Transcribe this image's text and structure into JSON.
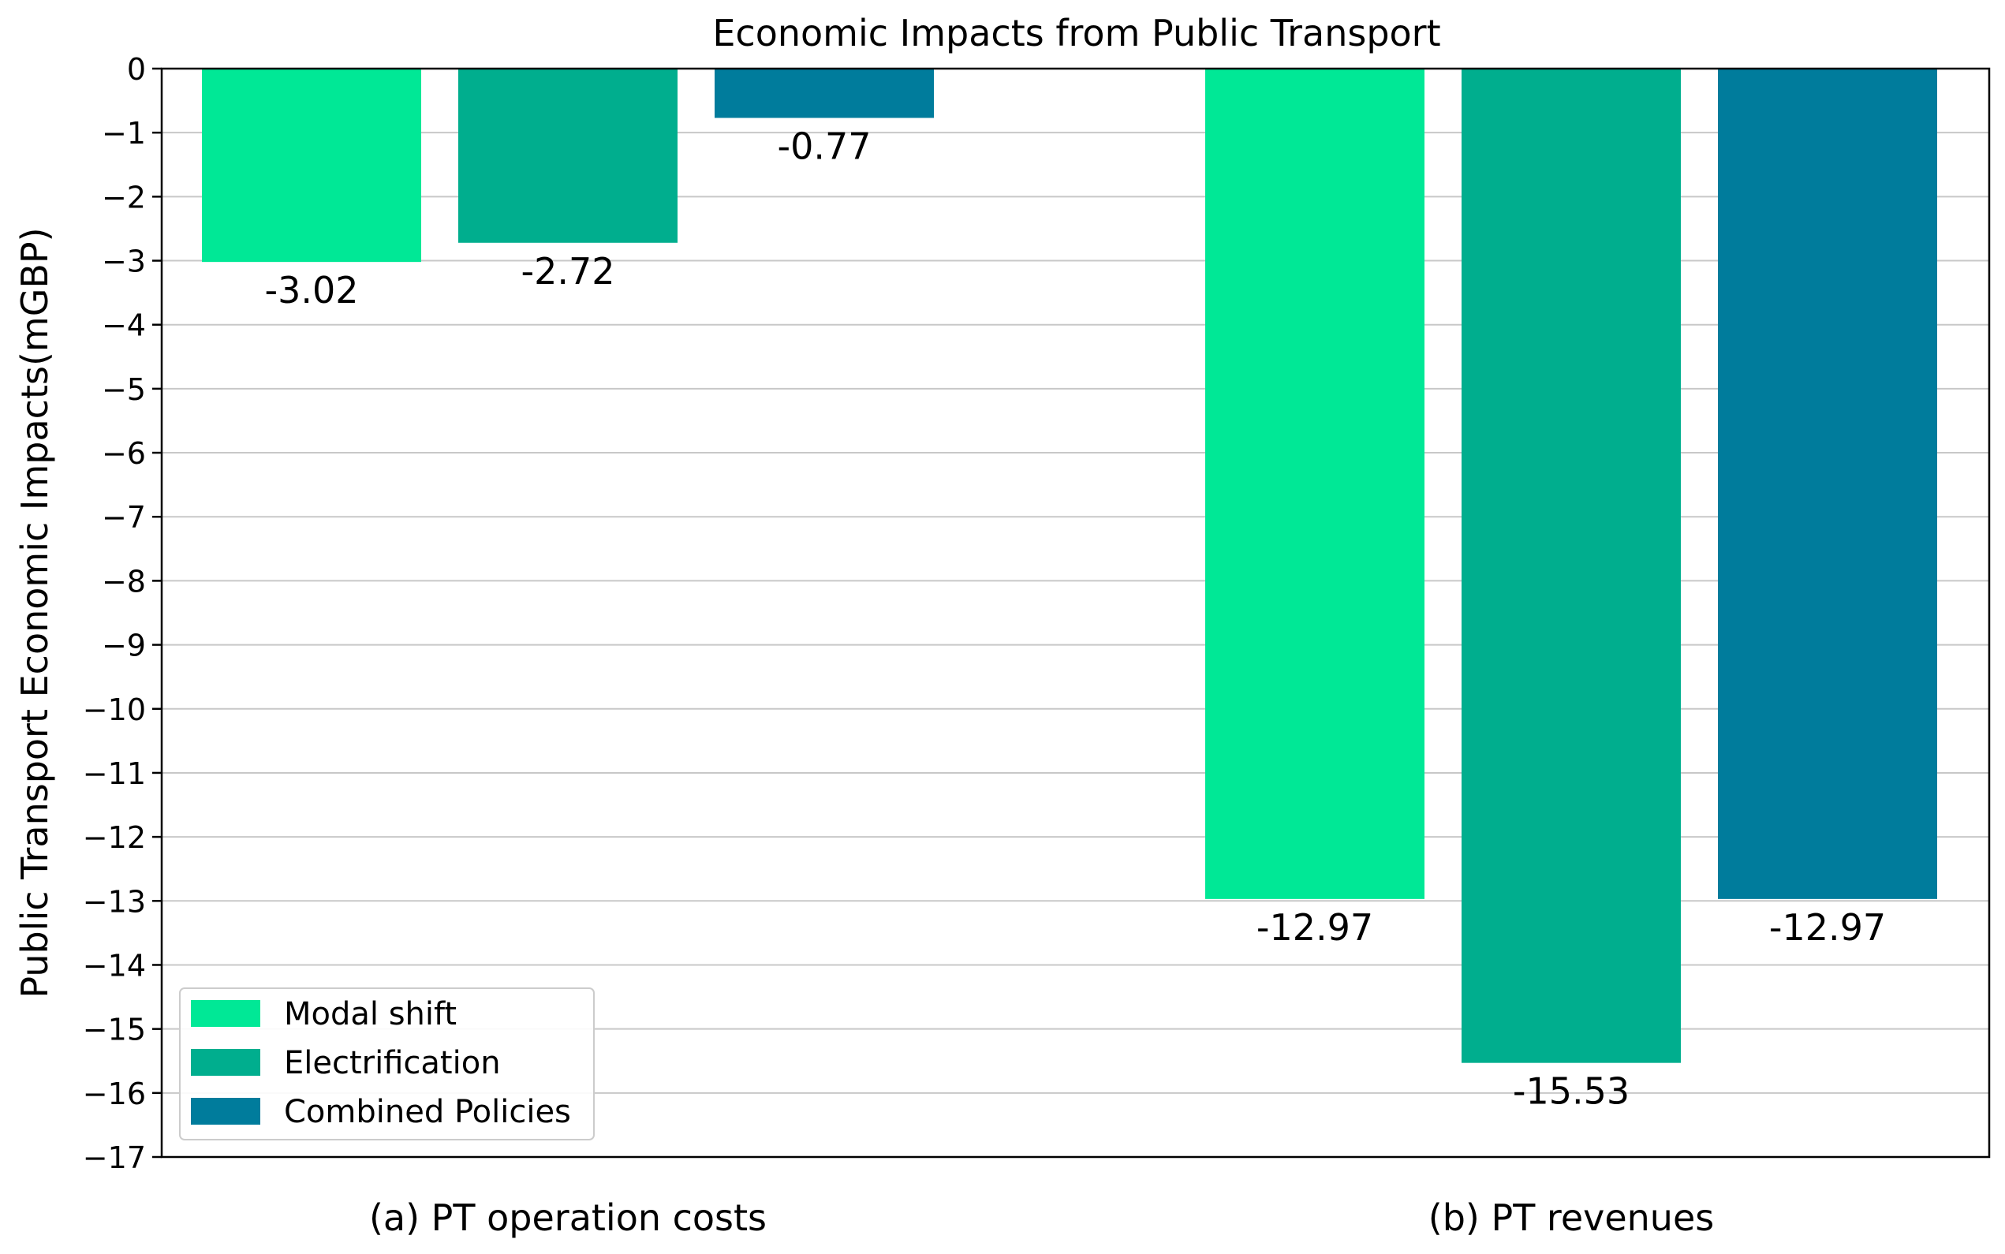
{
  "chart_data": {
    "type": "bar",
    "title": "Economic Impacts from Public Transport",
    "xlabel": "",
    "ylabel": "Public Transport Economic Impacts(mGBP)",
    "ylim": [
      -17,
      0
    ],
    "yticks": [
      0,
      -1,
      -2,
      -3,
      -4,
      -5,
      -6,
      -7,
      -8,
      -9,
      -10,
      -11,
      -12,
      -13,
      -14,
      -15,
      -16,
      -17
    ],
    "ytick_labels": [
      "0",
      "−1",
      "−2",
      "−3",
      "−4",
      "−5",
      "−6",
      "−7",
      "−8",
      "−9",
      "−10",
      "−11",
      "−12",
      "−13",
      "−14",
      "−15",
      "−16",
      "−17"
    ],
    "grid": true,
    "categories": [
      "(a) PT operation costs",
      "(b) PT revenues"
    ],
    "series": [
      {
        "name": "Modal shift",
        "color": "#00E896",
        "values": [
          -3.02,
          -12.97
        ],
        "labels": [
          "-3.02",
          "-12.97"
        ]
      },
      {
        "name": "Electrification",
        "color": "#00AE8E",
        "values": [
          -2.72,
          -15.53
        ],
        "labels": [
          "-2.72",
          "-15.53"
        ]
      },
      {
        "name": "Combined Policies",
        "color": "#007C9C",
        "values": [
          -0.77,
          -12.97
        ],
        "labels": [
          "-0.77",
          "-12.97"
        ]
      }
    ],
    "legend": {
      "position": "lower-left"
    }
  }
}
